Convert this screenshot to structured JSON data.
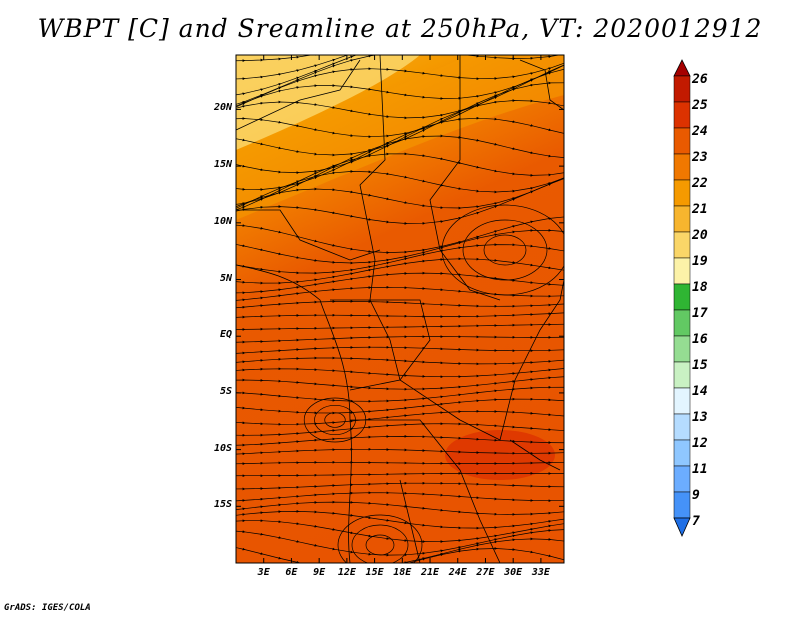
{
  "title": "WBPT [C] and Sreamline at 250hPa, VT: 2020012912",
  "credit": "GrADS: IGES/COLA",
  "map": {
    "lat_ticks": [
      "20N",
      "15N",
      "10N",
      "5N",
      "EQ",
      "5S",
      "10S",
      "15S"
    ],
    "lat_values": [
      20,
      15,
      10,
      5,
      0,
      -5,
      -10,
      -15
    ],
    "lon_ticks": [
      "3E",
      "6E",
      "9E",
      "12E",
      "15E",
      "18E",
      "21E",
      "24E",
      "27E",
      "30E",
      "33E"
    ],
    "lon_values": [
      3,
      6,
      9,
      12,
      15,
      18,
      21,
      24,
      27,
      30,
      33
    ],
    "lon_range": [
      0,
      35.5
    ],
    "lat_range": [
      -20,
      24.8
    ]
  },
  "colorbar": {
    "labels": [
      "26",
      "25",
      "24",
      "23",
      "22",
      "21",
      "20",
      "19",
      "18",
      "17",
      "16",
      "15",
      "14",
      "13",
      "12",
      "11",
      "9",
      "7"
    ],
    "colors": [
      "#a50000",
      "#c21a00",
      "#dc3200",
      "#e95a00",
      "#f07800",
      "#f59a00",
      "#f7b52e",
      "#fad668",
      "#fcf2a8",
      "#2fb533",
      "#62c963",
      "#95dd92",
      "#c9f1c3",
      "#e3f5ff",
      "#b5dcff",
      "#8fc7ff",
      "#6cadff",
      "#4592f8",
      "#1f6fe6"
    ]
  }
}
